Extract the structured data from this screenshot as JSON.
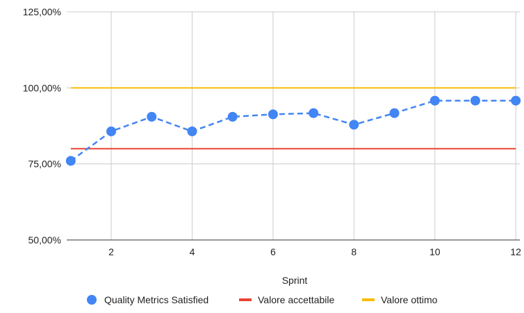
{
  "chart_data": {
    "type": "line",
    "xlabel": "Sprint",
    "ylabel": "",
    "x": [
      1,
      2,
      3,
      4,
      5,
      6,
      7,
      8,
      9,
      10,
      11,
      12
    ],
    "xticks": [
      2,
      4,
      6,
      8,
      10,
      12
    ],
    "xtick_labels": [
      "2",
      "4",
      "6",
      "8",
      "10",
      "12"
    ],
    "ylim": [
      50,
      125
    ],
    "yticks": [
      50,
      75,
      100,
      125
    ],
    "ytick_labels": [
      "50,00%",
      "75,00%",
      "100,00%",
      "125,00%"
    ],
    "grid": true,
    "legend_position": "bottom",
    "series": [
      {
        "name": "Quality Metrics Satisfied",
        "style": "dashed-line-with-markers",
        "color": "#4285F4",
        "values": [
          76,
          85.7,
          90.5,
          85.7,
          90.5,
          91.3,
          91.7,
          87.9,
          91.7,
          95.8,
          95.8,
          95.8
        ]
      },
      {
        "name": "Valore accettabile",
        "style": "solid-line",
        "color": "#EA4335",
        "values": [
          80,
          80,
          80,
          80,
          80,
          80,
          80,
          80,
          80,
          80,
          80,
          80
        ]
      },
      {
        "name": "Valore ottimo",
        "style": "solid-line",
        "color": "#FBBC04",
        "values": [
          100,
          100,
          100,
          100,
          100,
          100,
          100,
          100,
          100,
          100,
          100,
          100
        ]
      }
    ]
  }
}
